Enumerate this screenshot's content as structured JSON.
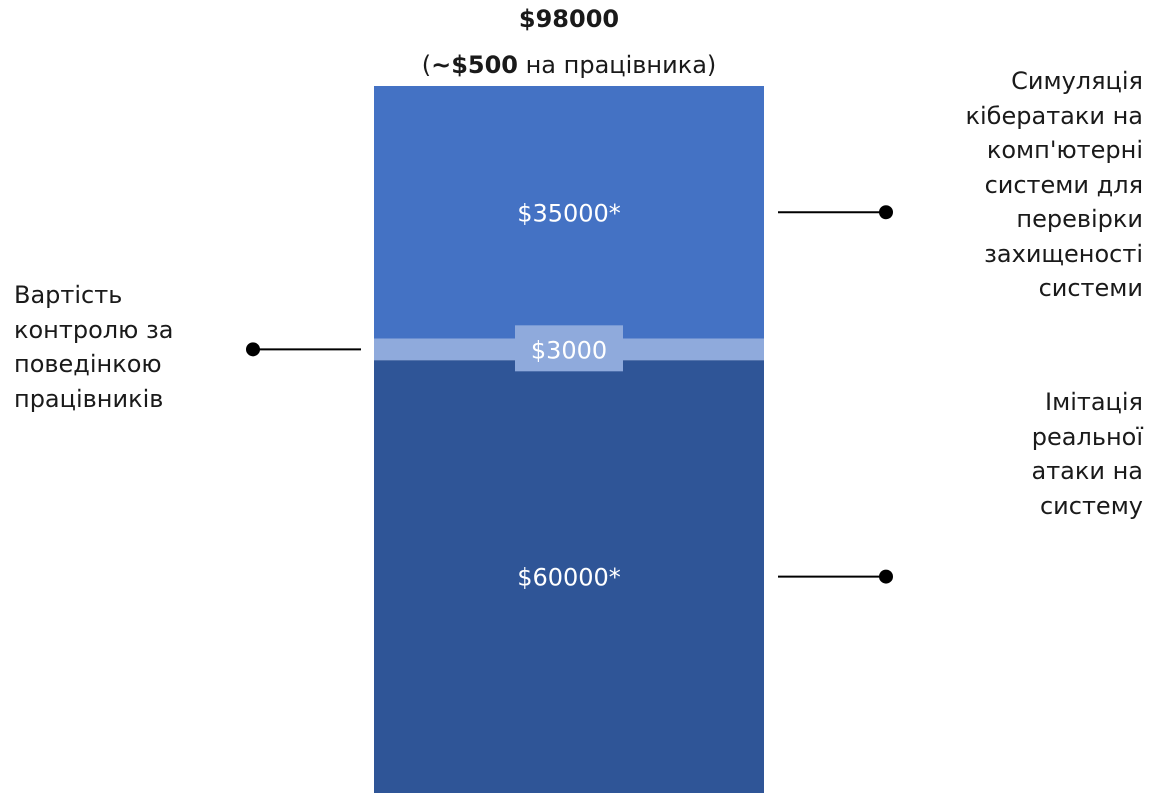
{
  "header": {
    "total": "$98000",
    "per_employee_open": "(",
    "per_employee_value": "~$500",
    "per_employee_rest": " на працівника)"
  },
  "chart_data": {
    "type": "bar",
    "stacked": true,
    "categories": [
      ""
    ],
    "total": 98000,
    "series": [
      {
        "value": 60000,
        "label": "$60000*",
        "color": "#2f5597",
        "callout": "Імітація\nреальної\nатаки на\nсистему"
      },
      {
        "value": 3000,
        "label": "$3000",
        "color": "#8faadc",
        "callout": "Вартість\nконтролю за\nповедінкою\nпрацівників"
      },
      {
        "value": 35000,
        "label": "$35000*",
        "color": "#4472c4",
        "callout": "Симуляція\nкібератаки на\nкомп'ютерні\nсистеми для\nперевірки\nзахищеності\nсистеми"
      }
    ],
    "label_text_color": "#ffffff",
    "small_label_box_color": "#8faadc",
    "callout_line_color": "#000000"
  }
}
